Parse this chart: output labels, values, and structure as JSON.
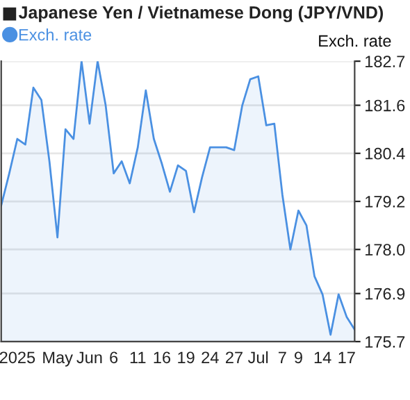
{
  "chart_data": {
    "type": "area",
    "title": "Japanese Yen / Vietnamese Dong (JPY/VND)",
    "ylabel": "Exch. rate",
    "categories": [
      null,
      null,
      "2025",
      null,
      null,
      null,
      null,
      "May",
      null,
      null,
      null,
      "Jun",
      null,
      null,
      "6",
      null,
      null,
      "11",
      null,
      null,
      "16",
      null,
      null,
      "19",
      null,
      null,
      "24",
      null,
      null,
      "27",
      null,
      null,
      "Jul",
      null,
      null,
      "7",
      null,
      "9",
      null,
      null,
      "14",
      null,
      null,
      "17",
      null
    ],
    "series": [
      {
        "name": "Exch. rate",
        "color": "#4a90e2",
        "values": [
          179.1,
          179.9,
          180.76,
          180.62,
          182.04,
          181.73,
          180.2,
          178.3,
          181.0,
          180.76,
          182.7,
          181.14,
          182.7,
          181.6,
          179.9,
          180.2,
          179.65,
          180.55,
          181.97,
          180.76,
          180.14,
          179.44,
          180.1,
          179.96,
          178.93,
          179.8,
          180.55,
          180.55,
          180.55,
          180.48,
          181.59,
          182.25,
          182.32,
          181.1,
          181.14,
          179.37,
          178.0,
          178.97,
          178.6,
          177.33,
          176.88,
          175.87,
          176.88,
          176.32,
          176.0
        ]
      }
    ],
    "ylim": [
      175.7,
      182.7
    ],
    "yticks": [
      175.7,
      176.9,
      {
        "value": 178,
        "label": "178.0"
      },
      179.2,
      180.4,
      181.6,
      182.7
    ],
    "grid": "y",
    "legend": "top left"
  }
}
